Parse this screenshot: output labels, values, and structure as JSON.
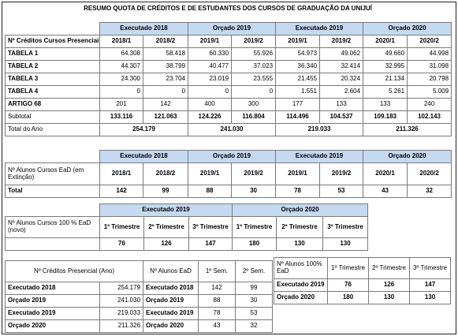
{
  "title": "RESUMO QUOTA DE CRÉDITOS E DE ESTUDANTES DOS CURSOS DE GRADUAÇÃO DA UNIJUÍ",
  "t1": {
    "groups": [
      "Executado 2018",
      "Orçado 2019",
      "Executado 2019",
      "Orçado 2020"
    ],
    "row_header": "Nº Créditos Cursos Presenciais",
    "periods": [
      "2018/1",
      "2018/2",
      "2019/1",
      "2019/2",
      "2019/1",
      "2019/2",
      "2020/1",
      "2020/2"
    ],
    "rows": [
      {
        "label": "TABELA 1",
        "values": [
          "64.308",
          "58.418",
          "60.330",
          "55.926",
          "54.973",
          "49.062",
          "49.660",
          "44.998"
        ]
      },
      {
        "label": "TABELA 2",
        "values": [
          "44.307",
          "38.799",
          "40.477",
          "37.023",
          "36.340",
          "32.414",
          "32.995",
          "31.098"
        ]
      },
      {
        "label": "TABELA 3",
        "values": [
          "24.300",
          "23.704",
          "23.019",
          "23.555",
          "21.455",
          "20.324",
          "21.134",
          "20.798"
        ]
      },
      {
        "label": "TABELA 4",
        "values": [
          "0",
          "0",
          "0",
          "0",
          "1.551",
          "2.604",
          "5.261",
          "5.009"
        ]
      },
      {
        "label": "ARTIGO 68",
        "values": [
          "201",
          "142",
          "400",
          "300",
          "177",
          "133",
          "133",
          "240"
        ]
      }
    ],
    "subtotal_label": "Subtotal",
    "subtotal": [
      "133.116",
      "121.063",
      "124.226",
      "116.804",
      "114.496",
      "104.537",
      "109.183",
      "102.143"
    ],
    "total_label": "Total do Ano",
    "totals": [
      "254.179",
      "241.030",
      "219.033",
      "211.326"
    ]
  },
  "t2": {
    "groups": [
      "Executado 2018",
      "Orçado 2019",
      "Executado 2019",
      "Orçado 2020"
    ],
    "row_header": "Nº  Alunos Cursos EaD (em Extinção)",
    "periods": [
      "2018/1",
      "2018/2",
      "2019/1",
      "2019/2",
      "2019/1",
      "2019/2",
      "2020/1",
      "2020/2"
    ],
    "total_label": "Total",
    "totals": [
      "142",
      "99",
      "88",
      "30",
      "78",
      "53",
      "43",
      "32"
    ]
  },
  "t3": {
    "groups": [
      "Executado 2019",
      "Orçado 2020"
    ],
    "row_header": "Nº  Alunos Cursos 100 % EaD (novo)",
    "periods": [
      "1º Trimestre",
      "2º Trimestre",
      "3º Trimestre",
      "1º Trimestre",
      "2º Trimestre",
      "3º Trimestre"
    ],
    "values": [
      "76",
      "126",
      "147",
      "180",
      "130",
      "130"
    ]
  },
  "t4": {
    "header": "Nº Créditos Presencial (Ano)",
    "rows": [
      {
        "label": "Executado 2018",
        "value": "254.179"
      },
      {
        "label": "Orçado 2019",
        "value": "241.030"
      },
      {
        "label": "Executado 2019",
        "value": "219.033"
      },
      {
        "label": "Orçado 2020",
        "value": "211.326"
      }
    ]
  },
  "t5": {
    "header": "Nº Alunos EaD",
    "sem1": "1º Sem.",
    "sem2": "2º Sem.",
    "rows": [
      {
        "label": "Executado 2018",
        "s1": "142",
        "s2": "99"
      },
      {
        "label": "Orçado 2019",
        "s1": "88",
        "s2": "30"
      },
      {
        "label": "Executado 2019",
        "s1": "78",
        "s2": "53"
      },
      {
        "label": "Orçado 2020",
        "s1": "43",
        "s2": "32"
      }
    ]
  },
  "t6": {
    "header": "Nº Alunos 100% EaD",
    "periods": [
      "1º Trimestre",
      "2º Trimestre",
      "3º Trimestre"
    ],
    "rows": [
      {
        "label": "Executado 2019",
        "values": [
          "76",
          "126",
          "147"
        ]
      },
      {
        "label": "Orçado 2020",
        "values": [
          "180",
          "130",
          "130"
        ]
      }
    ]
  }
}
